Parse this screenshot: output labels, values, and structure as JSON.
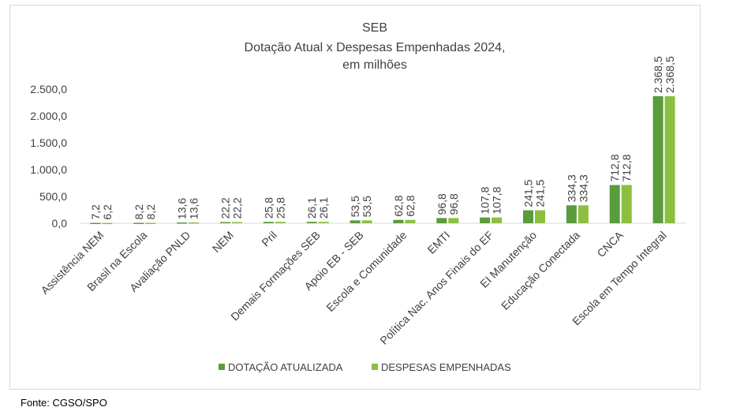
{
  "chart_data": {
    "type": "bar",
    "title_lines": [
      "SEB",
      "Dotação Atual x Despesas Empenhadas 2024,",
      "em milhões"
    ],
    "categories": [
      "Assistência NEM",
      "Brasil na Escola",
      "Avaliação PNLD",
      "NEM",
      "Pril",
      "Demais Formações SEB",
      "Apoio EB - SEB",
      "Escola e Comunidade",
      "EMTI",
      "Política Nac. Anos Finais do EF",
      "EI Manutenção",
      "Educação Conectada",
      "CNCA",
      "Escola em Tempo Integral"
    ],
    "series": [
      {
        "name": "DOTAÇÃO ATUALIZADA",
        "color": "#5a9b3c",
        "values": [
          7.2,
          8.2,
          13.6,
          22.2,
          25.8,
          26.1,
          53.5,
          62.8,
          96.8,
          107.8,
          241.5,
          334.3,
          712.8,
          2368.5
        ],
        "labels": [
          "7,2",
          "8,2",
          "13,6",
          "22,2",
          "25,8",
          "26,1",
          "53,5",
          "62,8",
          "96,8",
          "107,8",
          "241,5",
          "334,3",
          "712,8",
          "2.368,5"
        ]
      },
      {
        "name": "DESPESAS EMPENHADAS",
        "color": "#8cbf3f",
        "values": [
          6.2,
          8.2,
          13.6,
          22.2,
          25.8,
          26.1,
          53.5,
          62.8,
          96.8,
          107.8,
          241.5,
          334.3,
          712.8,
          2368.5
        ],
        "labels": [
          "6,2",
          "8,2",
          "13,6",
          "22,2",
          "25,8",
          "26,1",
          "53,5",
          "62,8",
          "96,8",
          "107,8",
          "241,5",
          "334,3",
          "712,8",
          "2.368,5"
        ]
      }
    ],
    "y_ticks": [
      0,
      500,
      1000,
      1500,
      2000,
      2500
    ],
    "y_tick_labels": [
      "0,0",
      "500,0",
      "1.000,0",
      "1.500,0",
      "2.000,0",
      "2.500,0"
    ],
    "ylim": [
      0,
      2500
    ],
    "xlabel": "",
    "ylabel": "",
    "legend_position": "bottom",
    "grid": false
  },
  "source": "Fonte: CGSO/SPO"
}
